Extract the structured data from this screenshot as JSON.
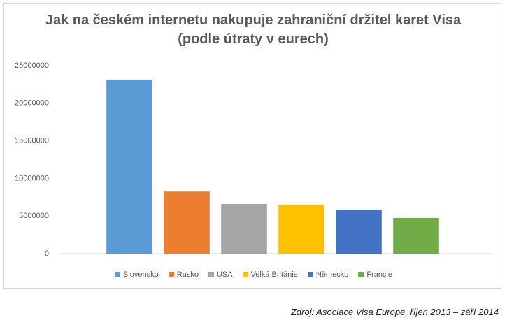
{
  "chart_data": {
    "type": "bar",
    "title": "Jak na českém internetu nakupuje zahraniční držitel karet Visa (podle útraty v eurech)",
    "categories": [
      "Slovensko",
      "Rusko",
      "USA",
      "Velká Británie",
      "Německo",
      "Francie"
    ],
    "values": [
      23150000,
      8250000,
      6600000,
      6500000,
      5850000,
      4750000
    ],
    "colors": [
      "#5b9bd5",
      "#ed7d31",
      "#a5a5a5",
      "#ffc000",
      "#4472c4",
      "#70ad47"
    ],
    "ylim": [
      0,
      25000000
    ],
    "yticks": [
      0,
      5000000,
      10000000,
      15000000,
      20000000,
      25000000
    ],
    "grid": false,
    "legend": "bottom",
    "source": "Zdroj: Asociace Visa Europe, říjen 2013 – září 2014"
  }
}
